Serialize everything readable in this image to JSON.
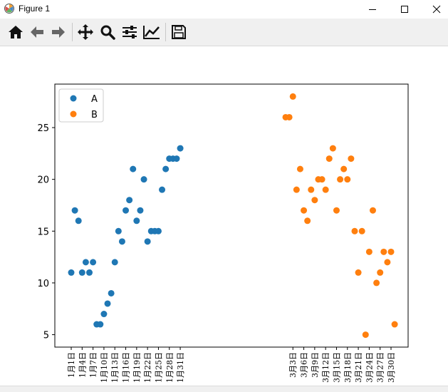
{
  "window": {
    "title": "Figure 1",
    "controls": [
      "minimize",
      "maximize",
      "close"
    ]
  },
  "toolbar": {
    "buttons": [
      {
        "name": "home",
        "icon": "home-icon"
      },
      {
        "name": "back",
        "icon": "arrow-left-icon"
      },
      {
        "name": "forward",
        "icon": "arrow-right-icon"
      },
      {
        "name": "pan",
        "icon": "move-icon"
      },
      {
        "name": "zoom",
        "icon": "zoom-icon"
      },
      {
        "name": "subplots",
        "icon": "sliders-icon"
      },
      {
        "name": "customize",
        "icon": "line-chart-icon"
      },
      {
        "name": "save",
        "icon": "save-icon"
      }
    ]
  },
  "colors": {
    "series_a": "#1f77b4",
    "series_b": "#ff7f0e"
  },
  "chart_data": {
    "type": "scatter",
    "title": "",
    "xlabel": "",
    "ylabel": "",
    "ylim": [
      3.8,
      29.2
    ],
    "yticks": [
      5,
      10,
      15,
      20,
      25
    ],
    "legend": {
      "position": "top-left"
    },
    "x_tick_labels": [
      {
        "date": "1-01",
        "label": "1月1日"
      },
      {
        "date": "1-04",
        "label": "1月4日"
      },
      {
        "date": "1-07",
        "label": "1月7日"
      },
      {
        "date": "1-10",
        "label": "1月10日"
      },
      {
        "date": "1-13",
        "label": "1月13日"
      },
      {
        "date": "1-16",
        "label": "1月16日"
      },
      {
        "date": "1-19",
        "label": "1月19日"
      },
      {
        "date": "1-22",
        "label": "1月22日"
      },
      {
        "date": "1-25",
        "label": "1月25日"
      },
      {
        "date": "1-28",
        "label": "1月28日"
      },
      {
        "date": "1-31",
        "label": "1月31日"
      },
      {
        "date": "3-03",
        "label": "3月3日"
      },
      {
        "date": "3-06",
        "label": "3月6日"
      },
      {
        "date": "3-09",
        "label": "3月9日"
      },
      {
        "date": "3-12",
        "label": "3月12日"
      },
      {
        "date": "3-15",
        "label": "3月15日"
      },
      {
        "date": "3-18",
        "label": "3月18日"
      },
      {
        "date": "3-21",
        "label": "3月21日"
      },
      {
        "date": "3-24",
        "label": "3月24日"
      },
      {
        "date": "3-27",
        "label": "3月27日"
      },
      {
        "date": "3-30",
        "label": "3月30日"
      }
    ],
    "series": [
      {
        "name": "A",
        "x": [
          "1-01",
          "1-02",
          "1-03",
          "1-04",
          "1-05",
          "1-06",
          "1-07",
          "1-08",
          "1-09",
          "1-10",
          "1-11",
          "1-12",
          "1-13",
          "1-14",
          "1-15",
          "1-16",
          "1-17",
          "1-18",
          "1-19",
          "1-20",
          "1-21",
          "1-22",
          "1-23",
          "1-24",
          "1-25",
          "1-26",
          "1-27",
          "1-28",
          "1-29",
          "1-30",
          "1-31"
        ],
        "y": [
          11,
          17,
          16,
          11,
          12,
          11,
          12,
          6,
          6,
          7,
          8,
          9,
          12,
          15,
          14,
          17,
          18,
          21,
          16,
          17,
          20,
          14,
          15,
          15,
          15,
          19,
          21,
          22,
          22,
          22,
          23
        ]
      },
      {
        "name": "B",
        "x": [
          "3-01",
          "3-02",
          "3-03",
          "3-04",
          "3-05",
          "3-06",
          "3-07",
          "3-08",
          "3-09",
          "3-10",
          "3-11",
          "3-12",
          "3-13",
          "3-14",
          "3-15",
          "3-16",
          "3-17",
          "3-18",
          "3-19",
          "3-20",
          "3-21",
          "3-22",
          "3-23",
          "3-24",
          "3-25",
          "3-26",
          "3-27",
          "3-28",
          "3-29",
          "3-30",
          "3-31"
        ],
        "y": [
          26,
          26,
          28,
          19,
          21,
          17,
          16,
          19,
          18,
          20,
          20,
          19,
          22,
          23,
          17,
          20,
          21,
          20,
          22,
          15,
          11,
          15,
          5,
          13,
          17,
          10,
          11,
          13,
          12,
          13,
          6
        ]
      }
    ]
  }
}
